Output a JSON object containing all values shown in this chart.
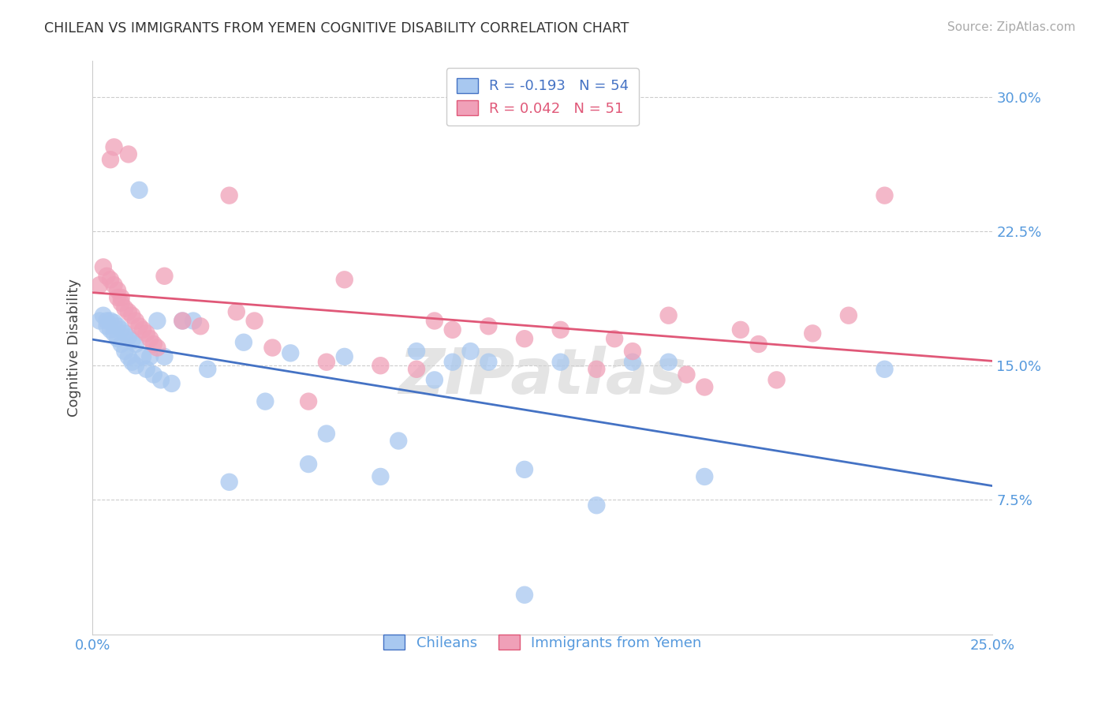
{
  "title": "CHILEAN VS IMMIGRANTS FROM YEMEN COGNITIVE DISABILITY CORRELATION CHART",
  "source": "Source: ZipAtlas.com",
  "ylabel": "Cognitive Disability",
  "r1": -0.193,
  "n1": 54,
  "r2": 0.042,
  "n2": 51,
  "color_blue": "#A8C8F0",
  "color_pink": "#F0A0B8",
  "line_color_blue": "#4472C4",
  "line_color_pink": "#E05878",
  "axis_color": "#5599DD",
  "title_color": "#333333",
  "grid_color": "#CCCCCC",
  "watermark": "ZIPatlas",
  "legend_label1": "Chileans",
  "legend_label2": "Immigrants from Yemen",
  "xmin": 0.0,
  "xmax": 0.25,
  "ymin": 0.0,
  "ymax": 0.32,
  "yticks": [
    0.075,
    0.15,
    0.225,
    0.3
  ],
  "ytick_labels": [
    "7.5%",
    "15.0%",
    "22.5%",
    "30.0%"
  ],
  "xtick_labels": [
    "0.0%",
    "25.0%"
  ],
  "blue_x": [
    0.002,
    0.003,
    0.004,
    0.004,
    0.005,
    0.005,
    0.006,
    0.006,
    0.007,
    0.007,
    0.008,
    0.008,
    0.009,
    0.009,
    0.01,
    0.01,
    0.011,
    0.011,
    0.012,
    0.012,
    0.013,
    0.014,
    0.015,
    0.016,
    0.017,
    0.018,
    0.019,
    0.02,
    0.022,
    0.025,
    0.028,
    0.032,
    0.038,
    0.042,
    0.048,
    0.055,
    0.06,
    0.065,
    0.07,
    0.08,
    0.085,
    0.09,
    0.095,
    0.1,
    0.105,
    0.11,
    0.12,
    0.13,
    0.14,
    0.15,
    0.16,
    0.17,
    0.22,
    0.12
  ],
  "blue_y": [
    0.175,
    0.178,
    0.175,
    0.172,
    0.175,
    0.17,
    0.174,
    0.168,
    0.172,
    0.165,
    0.17,
    0.162,
    0.168,
    0.158,
    0.166,
    0.155,
    0.164,
    0.152,
    0.162,
    0.15,
    0.248,
    0.155,
    0.148,
    0.155,
    0.145,
    0.175,
    0.142,
    0.155,
    0.14,
    0.175,
    0.175,
    0.148,
    0.085,
    0.163,
    0.13,
    0.157,
    0.095,
    0.112,
    0.155,
    0.088,
    0.108,
    0.158,
    0.142,
    0.152,
    0.158,
    0.152,
    0.092,
    0.152,
    0.072,
    0.152,
    0.152,
    0.088,
    0.148,
    0.022
  ],
  "pink_x": [
    0.002,
    0.003,
    0.004,
    0.005,
    0.005,
    0.006,
    0.006,
    0.007,
    0.007,
    0.008,
    0.008,
    0.009,
    0.01,
    0.01,
    0.011,
    0.012,
    0.013,
    0.014,
    0.015,
    0.016,
    0.017,
    0.018,
    0.02,
    0.025,
    0.03,
    0.038,
    0.04,
    0.045,
    0.05,
    0.06,
    0.065,
    0.07,
    0.08,
    0.09,
    0.095,
    0.1,
    0.11,
    0.12,
    0.13,
    0.14,
    0.145,
    0.15,
    0.16,
    0.165,
    0.17,
    0.18,
    0.185,
    0.19,
    0.2,
    0.21,
    0.22
  ],
  "pink_y": [
    0.195,
    0.205,
    0.2,
    0.198,
    0.265,
    0.195,
    0.272,
    0.192,
    0.188,
    0.188,
    0.185,
    0.182,
    0.18,
    0.268,
    0.178,
    0.175,
    0.172,
    0.17,
    0.168,
    0.165,
    0.162,
    0.16,
    0.2,
    0.175,
    0.172,
    0.245,
    0.18,
    0.175,
    0.16,
    0.13,
    0.152,
    0.198,
    0.15,
    0.148,
    0.175,
    0.17,
    0.172,
    0.165,
    0.17,
    0.148,
    0.165,
    0.158,
    0.178,
    0.145,
    0.138,
    0.17,
    0.162,
    0.142,
    0.168,
    0.178,
    0.245
  ]
}
